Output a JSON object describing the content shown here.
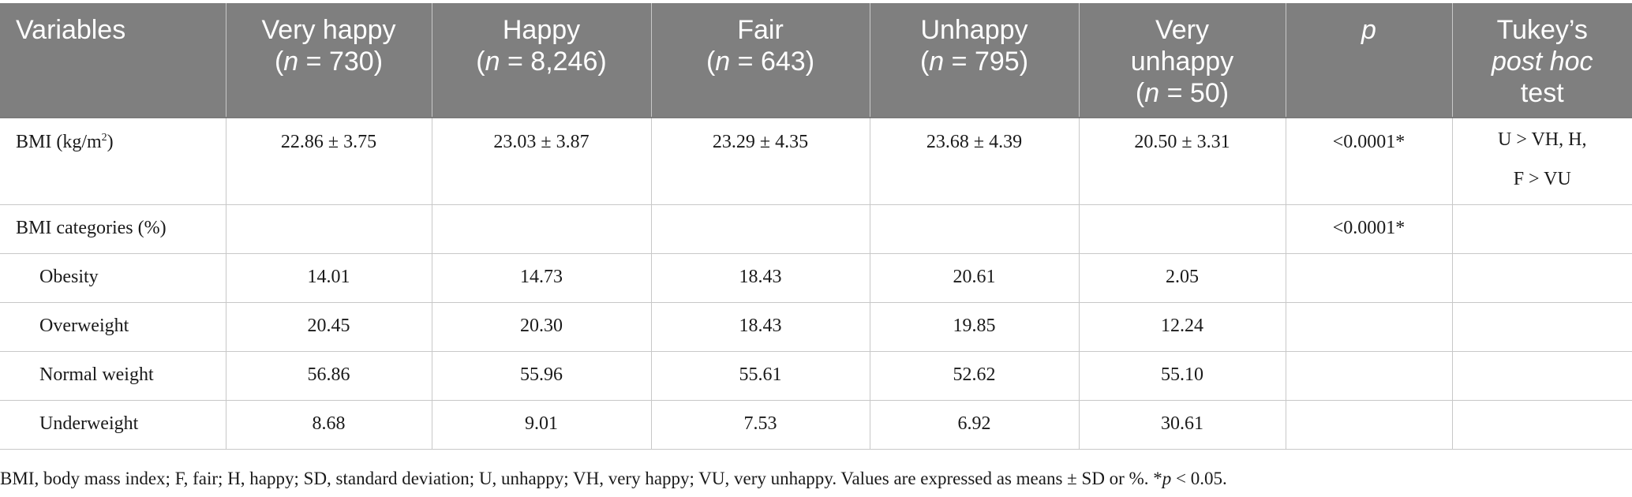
{
  "header": {
    "variables": "Variables",
    "very_happy": "Very happy",
    "very_happy_n": "= 730)",
    "happy": "Happy",
    "happy_n": "= 8,246)",
    "fair": "Fair",
    "fair_n": "= 643)",
    "unhappy": "Unhappy",
    "unhappy_n": "= 795)",
    "very_unhappy_1": "Very",
    "very_unhappy_2": "unhappy",
    "very_unhappy_n": "= 50)",
    "p": "p",
    "n_open": "(",
    "n_letter": "n",
    "tukey_1": "Tukey’s",
    "tukey_2": "post hoc",
    "tukey_3": "test"
  },
  "rows": {
    "bmi": {
      "label": "BMI (kg/m",
      "label_sup": "2",
      "label_close": ")",
      "values": [
        "22.86 ± 3.75",
        "23.03 ± 3.87",
        "23.29 ± 4.35",
        "23.68 ± 4.39",
        "20.50 ± 3.31"
      ],
      "p": "<0.0001*",
      "tukey_line1": "U > VH, H,",
      "tukey_line2": "F > VU"
    },
    "categories": {
      "label": "BMI categories (%)",
      "p": "<0.0001*"
    },
    "obesity": {
      "label": "Obesity",
      "values": [
        "14.01",
        "14.73",
        "18.43",
        "20.61",
        "2.05"
      ]
    },
    "overweight": {
      "label": "Overweight",
      "values": [
        "20.45",
        "20.30",
        "18.43",
        "19.85",
        "12.24"
      ]
    },
    "normal": {
      "label": "Normal weight",
      "values": [
        "56.86",
        "55.96",
        "55.61",
        "52.62",
        "55.10"
      ]
    },
    "underweight": {
      "label": "Underweight",
      "values": [
        "8.68",
        "9.01",
        "7.53",
        "6.92",
        "30.61"
      ]
    }
  },
  "footnote": {
    "text": "BMI, body mass index; F, fair; H, happy; SD, standard deviation; U, unhappy; VH, very happy; VU, very unhappy. Values are expressed as means ± SD or %. *",
    "p": "p",
    "tail": " < 0.05."
  }
}
